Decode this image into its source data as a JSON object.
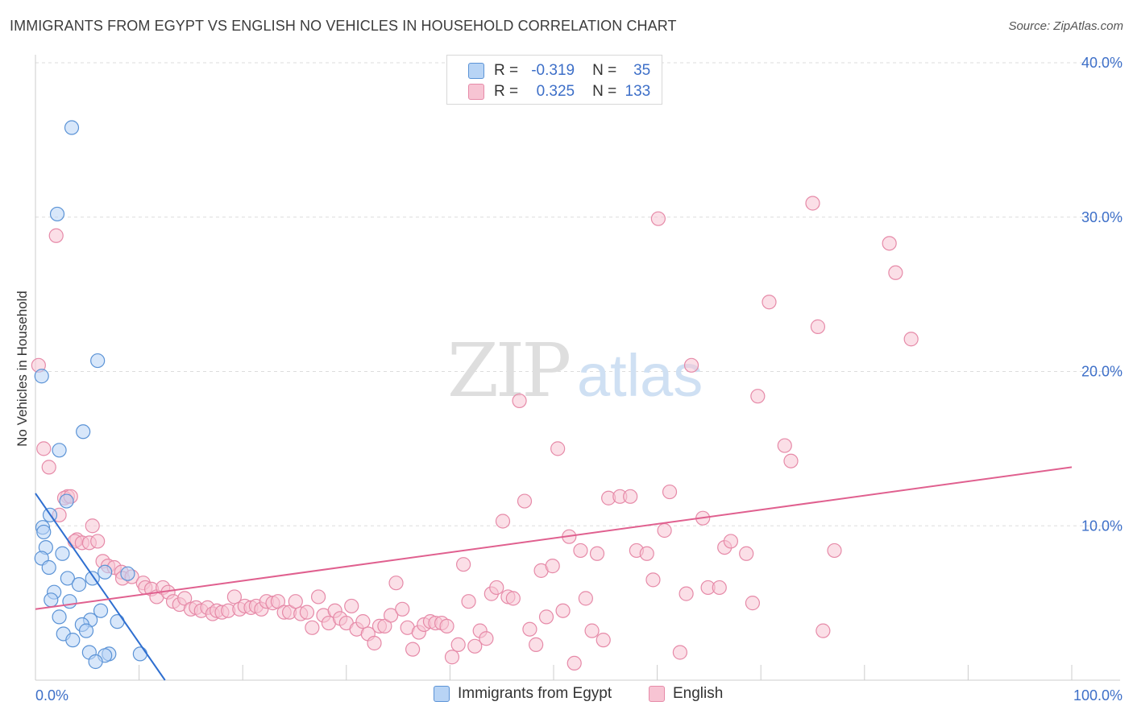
{
  "title": "IMMIGRANTS FROM EGYPT VS ENGLISH NO VEHICLES IN HOUSEHOLD CORRELATION CHART",
  "source": "Source: ZipAtlas.com",
  "watermark": {
    "zip": "ZIP",
    "atlas": "atlas"
  },
  "legend": {
    "r_label": "R =",
    "n_label": "N =",
    "series": [
      {
        "name": "Immigrants from Egypt",
        "r": "-0.319",
        "n": "35",
        "fill": "#b8d4f5",
        "stroke": "#5b93d6"
      },
      {
        "name": "English",
        "r": "0.325",
        "n": "133",
        "fill": "#f7c4d3",
        "stroke": "#e68aa8"
      }
    ]
  },
  "colors": {
    "blue_line": "#2f6fd0",
    "pink_line": "#e0608f",
    "axis_text": "#3d6fc8",
    "grid": "#dddddd"
  },
  "chart_data": {
    "type": "scatter",
    "title": "IMMIGRANTS FROM EGYPT VS ENGLISH NO VEHICLES IN HOUSEHOLD CORRELATION CHART",
    "xlabel": "",
    "ylabel": "No Vehicles in Household",
    "xlim": [
      0,
      100
    ],
    "ylim": [
      0,
      40
    ],
    "x_tick_labels": [
      "0.0%",
      "100.0%"
    ],
    "y_ticks": [
      10,
      20,
      30,
      40
    ],
    "y_tick_labels": [
      "10.0%",
      "20.0%",
      "30.0%",
      "40.0%"
    ],
    "series": [
      {
        "name": "Immigrants from Egypt",
        "r": -0.319,
        "n": 35,
        "trend": {
          "x0": 0,
          "y0": 12.1,
          "x1": 12.5,
          "y1": 0
        },
        "points": [
          [
            3.5,
            35.8
          ],
          [
            2.1,
            30.2
          ],
          [
            6.0,
            20.7
          ],
          [
            0.6,
            19.7
          ],
          [
            4.6,
            16.1
          ],
          [
            2.3,
            14.9
          ],
          [
            3.0,
            11.6
          ],
          [
            1.4,
            10.7
          ],
          [
            0.7,
            9.9
          ],
          [
            0.8,
            9.6
          ],
          [
            1.0,
            8.6
          ],
          [
            2.6,
            8.2
          ],
          [
            0.6,
            7.9
          ],
          [
            1.3,
            7.3
          ],
          [
            6.7,
            7.0
          ],
          [
            8.9,
            6.9
          ],
          [
            3.1,
            6.6
          ],
          [
            5.5,
            6.6
          ],
          [
            4.2,
            6.2
          ],
          [
            1.8,
            5.7
          ],
          [
            1.5,
            5.2
          ],
          [
            3.3,
            5.1
          ],
          [
            6.3,
            4.5
          ],
          [
            2.3,
            4.1
          ],
          [
            5.3,
            3.9
          ],
          [
            7.9,
            3.8
          ],
          [
            4.5,
            3.6
          ],
          [
            4.9,
            3.2
          ],
          [
            2.7,
            3.0
          ],
          [
            3.6,
            2.6
          ],
          [
            5.2,
            1.8
          ],
          [
            7.1,
            1.7
          ],
          [
            10.1,
            1.7
          ],
          [
            6.7,
            1.6
          ],
          [
            5.8,
            1.2
          ]
        ]
      },
      {
        "name": "English",
        "r": 0.325,
        "n": 133,
        "trend": {
          "x0": 0,
          "y0": 4.6,
          "x1": 100,
          "y1": 13.8
        },
        "points": [
          [
            2.0,
            28.8
          ],
          [
            0.3,
            20.4
          ],
          [
            0.8,
            15.0
          ],
          [
            1.3,
            13.8
          ],
          [
            2.3,
            10.7
          ],
          [
            3.1,
            11.9
          ],
          [
            2.8,
            11.8
          ],
          [
            3.4,
            11.9
          ],
          [
            5.5,
            10.0
          ],
          [
            4.0,
            9.1
          ],
          [
            3.8,
            9.0
          ],
          [
            4.5,
            8.9
          ],
          [
            5.2,
            8.9
          ],
          [
            6.0,
            9.0
          ],
          [
            6.5,
            7.7
          ],
          [
            7.0,
            7.4
          ],
          [
            7.6,
            7.3
          ],
          [
            8.3,
            7.0
          ],
          [
            8.4,
            6.6
          ],
          [
            9.3,
            6.7
          ],
          [
            10.4,
            6.3
          ],
          [
            10.6,
            6.0
          ],
          [
            11.2,
            5.9
          ],
          [
            11.7,
            5.4
          ],
          [
            12.3,
            6.0
          ],
          [
            12.8,
            5.7
          ],
          [
            13.3,
            5.1
          ],
          [
            13.9,
            4.9
          ],
          [
            14.4,
            5.3
          ],
          [
            15.0,
            4.6
          ],
          [
            15.5,
            4.7
          ],
          [
            16.0,
            4.5
          ],
          [
            16.6,
            4.7
          ],
          [
            17.1,
            4.3
          ],
          [
            17.5,
            4.5
          ],
          [
            18.0,
            4.4
          ],
          [
            18.6,
            4.5
          ],
          [
            19.2,
            5.4
          ],
          [
            19.7,
            4.6
          ],
          [
            20.2,
            4.8
          ],
          [
            20.8,
            4.7
          ],
          [
            21.3,
            4.8
          ],
          [
            21.8,
            4.6
          ],
          [
            22.3,
            5.1
          ],
          [
            22.9,
            5.0
          ],
          [
            23.4,
            5.1
          ],
          [
            24.0,
            4.4
          ],
          [
            24.5,
            4.4
          ],
          [
            25.1,
            5.1
          ],
          [
            25.6,
            4.3
          ],
          [
            26.2,
            4.4
          ],
          [
            26.7,
            3.4
          ],
          [
            27.3,
            5.4
          ],
          [
            27.8,
            4.2
          ],
          [
            28.3,
            3.7
          ],
          [
            28.9,
            4.5
          ],
          [
            29.4,
            4.0
          ],
          [
            30.0,
            3.7
          ],
          [
            30.5,
            4.8
          ],
          [
            31.0,
            3.3
          ],
          [
            31.6,
            3.8
          ],
          [
            32.1,
            3.0
          ],
          [
            32.7,
            2.4
          ],
          [
            33.2,
            3.5
          ],
          [
            33.7,
            3.5
          ],
          [
            34.3,
            4.2
          ],
          [
            34.8,
            6.3
          ],
          [
            35.4,
            4.6
          ],
          [
            35.9,
            3.4
          ],
          [
            36.4,
            2.0
          ],
          [
            37.0,
            3.1
          ],
          [
            37.5,
            3.6
          ],
          [
            38.1,
            3.8
          ],
          [
            38.6,
            3.7
          ],
          [
            39.2,
            3.7
          ],
          [
            39.7,
            3.5
          ],
          [
            40.2,
            1.5
          ],
          [
            40.8,
            2.3
          ],
          [
            41.3,
            7.5
          ],
          [
            41.8,
            5.1
          ],
          [
            42.4,
            2.2
          ],
          [
            42.9,
            3.2
          ],
          [
            43.5,
            2.7
          ],
          [
            44.0,
            5.6
          ],
          [
            44.5,
            6.0
          ],
          [
            45.1,
            10.3
          ],
          [
            45.6,
            5.4
          ],
          [
            46.1,
            5.3
          ],
          [
            46.7,
            18.1
          ],
          [
            47.2,
            11.6
          ],
          [
            47.7,
            3.3
          ],
          [
            48.3,
            2.3
          ],
          [
            48.8,
            7.1
          ],
          [
            49.3,
            4.1
          ],
          [
            49.9,
            7.4
          ],
          [
            50.4,
            15.0
          ],
          [
            50.9,
            4.5
          ],
          [
            51.5,
            9.3
          ],
          [
            52.0,
            1.1
          ],
          [
            52.6,
            8.4
          ],
          [
            53.1,
            5.3
          ],
          [
            53.7,
            3.2
          ],
          [
            54.2,
            8.2
          ],
          [
            54.8,
            2.6
          ],
          [
            55.3,
            11.8
          ],
          [
            56.4,
            11.9
          ],
          [
            57.4,
            11.9
          ],
          [
            58.0,
            8.4
          ],
          [
            59.0,
            8.2
          ],
          [
            59.6,
            6.5
          ],
          [
            60.1,
            29.9
          ],
          [
            60.7,
            9.7
          ],
          [
            61.2,
            12.2
          ],
          [
            62.2,
            1.8
          ],
          [
            62.8,
            5.6
          ],
          [
            63.3,
            20.4
          ],
          [
            64.4,
            10.5
          ],
          [
            64.9,
            6.0
          ],
          [
            66.0,
            6.0
          ],
          [
            66.5,
            8.6
          ],
          [
            67.1,
            9.0
          ],
          [
            68.6,
            8.2
          ],
          [
            69.2,
            5.0
          ],
          [
            69.7,
            18.4
          ],
          [
            70.8,
            24.5
          ],
          [
            72.3,
            15.2
          ],
          [
            72.9,
            14.2
          ],
          [
            75.0,
            30.9
          ],
          [
            75.5,
            22.9
          ],
          [
            76.0,
            3.2
          ],
          [
            77.1,
            8.4
          ],
          [
            82.4,
            28.3
          ],
          [
            83.0,
            26.4
          ],
          [
            84.5,
            22.1
          ]
        ]
      }
    ]
  }
}
